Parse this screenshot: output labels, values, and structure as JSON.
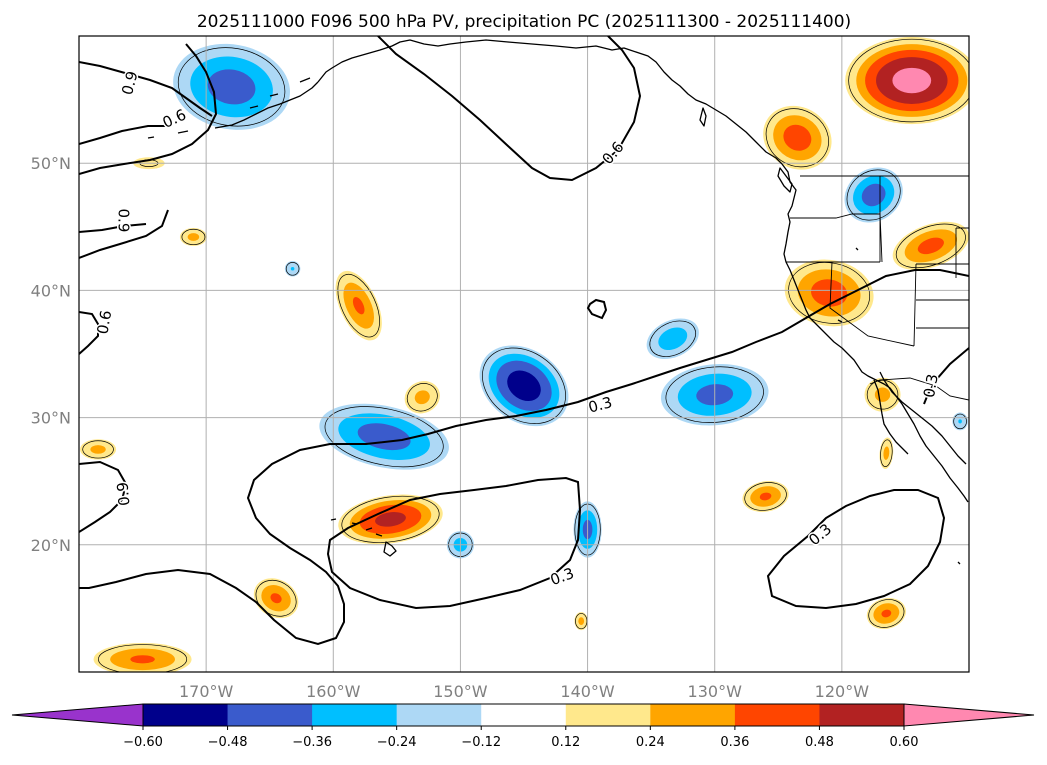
{
  "chart_data": {
    "type": "map",
    "title": "2025111000 F096 500 hPa PV, precipitation PC (2025111300 - 2025111400)",
    "lon_range": [
      -180,
      -110
    ],
    "lat_range": [
      10,
      60
    ],
    "x_ticks": [
      {
        "lon": -170,
        "label": "170°W"
      },
      {
        "lon": -160,
        "label": "160°W"
      },
      {
        "lon": -150,
        "label": "150°W"
      },
      {
        "lon": -140,
        "label": "140°W"
      },
      {
        "lon": -130,
        "label": "130°W"
      },
      {
        "lon": -120,
        "label": "120°W"
      }
    ],
    "y_ticks": [
      {
        "lat": 20,
        "label": "20°N"
      },
      {
        "lat": 30,
        "label": "30°N"
      },
      {
        "lat": 40,
        "label": "40°N"
      },
      {
        "lat": 50,
        "label": "50°N"
      }
    ],
    "colorbar": {
      "levels": [
        -0.6,
        -0.48,
        -0.36,
        -0.24,
        -0.12,
        0.12,
        0.24,
        0.36,
        0.48,
        0.6
      ],
      "tick_labels": [
        "−0.60",
        "−0.48",
        "−0.36",
        "−0.24",
        "−0.12",
        "0.12",
        "0.24",
        "0.36",
        "0.48",
        "0.60"
      ],
      "colors": [
        "#9933cc",
        "#00008b",
        "#3a5bcc",
        "#00bfff",
        "#add8f5",
        "#ffffff",
        "#ffe88c",
        "#ffa500",
        "#ff4500",
        "#b22222",
        "#ff88b0"
      ],
      "extend": "both"
    },
    "pv_contours": [
      {
        "level": 0.3,
        "label": "0.3"
      },
      {
        "level": 0.6,
        "label": "0.6"
      },
      {
        "level": 0.9,
        "label": "0.9"
      }
    ],
    "contour_labels": [
      {
        "text": "0.9",
        "lon": -176.0,
        "lat": 56.3,
        "angle": -75
      },
      {
        "text": "0.6",
        "lon": -172.5,
        "lat": 53.5,
        "angle": -25
      },
      {
        "text": "0.6",
        "lon": -138.0,
        "lat": 50.8,
        "angle": -50
      },
      {
        "text": "0.9",
        "lon": -176.5,
        "lat": 45.5,
        "angle": 90
      },
      {
        "text": "0.6",
        "lon": -178.0,
        "lat": 37.5,
        "angle": -80
      },
      {
        "text": "0.3",
        "lon": -139.0,
        "lat": 31.0,
        "angle": -15
      },
      {
        "text": "0.9",
        "lon": -176.5,
        "lat": 24.0,
        "angle": -95
      },
      {
        "text": "0.3",
        "lon": -142.0,
        "lat": 17.5,
        "angle": -20
      },
      {
        "text": "0.3",
        "lon": -121.7,
        "lat": 20.8,
        "angle": -40
      },
      {
        "text": "0.3",
        "lon": -113.0,
        "lat": 32.5,
        "angle": -80
      }
    ],
    "precip_anomalies": [
      {
        "lon": -168.0,
        "lat": 56.0,
        "rx": 5.0,
        "ry": 3.6,
        "rot": 10,
        "peak": -0.42
      },
      {
        "lon": -130.0,
        "lat": 31.8,
        "rx": 4.6,
        "ry": 2.6,
        "rot": -5,
        "peak": -0.4
      },
      {
        "lon": -156.0,
        "lat": 28.5,
        "rx": 5.6,
        "ry": 2.6,
        "rot": 12,
        "peak": -0.42
      },
      {
        "lon": -145.0,
        "lat": 32.5,
        "rx": 4.0,
        "ry": 3.0,
        "rot": 35,
        "peak": -0.55
      },
      {
        "lon": -133.3,
        "lat": 36.2,
        "rx": 2.4,
        "ry": 1.6,
        "rot": -25,
        "peak": -0.32
      },
      {
        "lon": -140.0,
        "lat": 21.2,
        "rx": 1.2,
        "ry": 2.4,
        "rot": 0,
        "peak": -0.4
      },
      {
        "lon": -150.0,
        "lat": 20.0,
        "rx": 1.2,
        "ry": 1.2,
        "rot": 0,
        "peak": -0.3
      },
      {
        "lon": -117.5,
        "lat": 47.5,
        "rx": 2.6,
        "ry": 2.2,
        "rot": -35,
        "peak": -0.42
      },
      {
        "lon": -163.2,
        "lat": 41.7,
        "rx": 0.7,
        "ry": 0.7,
        "rot": 0,
        "peak": -0.25
      },
      {
        "lon": -110.7,
        "lat": 29.7,
        "rx": 0.7,
        "ry": 0.8,
        "rot": 0,
        "peak": -0.25
      },
      {
        "lon": -114.5,
        "lat": 56.5,
        "rx": 5.5,
        "ry": 3.6,
        "rot": 0,
        "peak": 0.65
      },
      {
        "lon": -123.5,
        "lat": 52.0,
        "rx": 3.0,
        "ry": 2.6,
        "rot": 30,
        "peak": 0.42
      },
      {
        "lon": -121.0,
        "lat": 39.8,
        "rx": 3.8,
        "ry": 2.8,
        "rot": 10,
        "peak": 0.42
      },
      {
        "lon": -113.0,
        "lat": 43.5,
        "rx": 3.4,
        "ry": 1.8,
        "rot": -20,
        "peak": 0.4
      },
      {
        "lon": -155.5,
        "lat": 22.0,
        "rx": 4.4,
        "ry": 2.0,
        "rot": -8,
        "peak": 0.52
      },
      {
        "lon": -158.0,
        "lat": 38.8,
        "rx": 1.6,
        "ry": 3.2,
        "rot": -25,
        "peak": 0.38
      },
      {
        "lon": -153.0,
        "lat": 31.6,
        "rx": 1.6,
        "ry": 1.4,
        "rot": -25,
        "peak": 0.28
      },
      {
        "lon": -164.5,
        "lat": 15.8,
        "rx": 2.0,
        "ry": 1.6,
        "rot": 30,
        "peak": 0.38
      },
      {
        "lon": -175.0,
        "lat": 11.0,
        "rx": 4.2,
        "ry": 1.4,
        "rot": 0,
        "peak": 0.38
      },
      {
        "lon": -126.0,
        "lat": 23.8,
        "rx": 2.0,
        "ry": 1.3,
        "rot": -10,
        "peak": 0.38
      },
      {
        "lon": -116.5,
        "lat": 14.6,
        "rx": 1.7,
        "ry": 1.3,
        "rot": -15,
        "peak": 0.38
      },
      {
        "lon": -116.8,
        "lat": 31.8,
        "rx": 1.6,
        "ry": 1.5,
        "rot": 0,
        "peak": 0.28
      },
      {
        "lon": -116.5,
        "lat": 27.2,
        "rx": 0.6,
        "ry": 1.4,
        "rot": 5,
        "peak": 0.28
      },
      {
        "lon": -178.5,
        "lat": 27.5,
        "rx": 1.6,
        "ry": 0.9,
        "rot": 0,
        "peak": 0.28
      },
      {
        "lon": -171.0,
        "lat": 44.2,
        "rx": 1.2,
        "ry": 0.8,
        "rot": 0,
        "peak": 0.28
      },
      {
        "lon": -174.5,
        "lat": 50.0,
        "rx": 1.6,
        "ry": 0.6,
        "rot": 0,
        "peak": 0.15
      },
      {
        "lon": -140.5,
        "lat": 14.0,
        "rx": 0.6,
        "ry": 0.8,
        "rot": 0,
        "peak": 0.28
      }
    ]
  }
}
